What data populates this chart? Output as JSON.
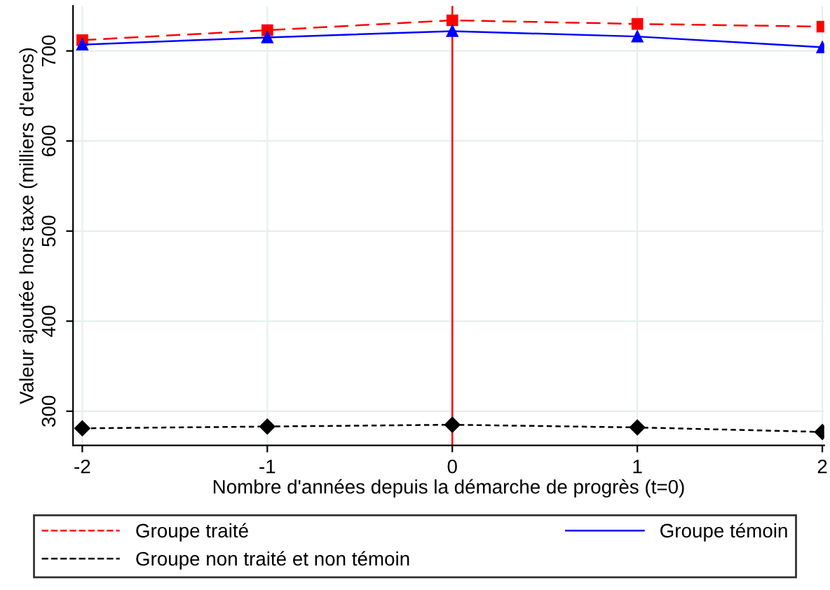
{
  "chart_data": {
    "type": "line",
    "xlabel": "Nombre d'années depuis la démarche de progrès (t=0)",
    "ylabel": "Valeur ajoutée hors taxe (milliers d'euros)",
    "x": [
      -2,
      -1,
      0,
      1,
      2
    ],
    "series": [
      {
        "name": "Groupe traité",
        "color": "#ff0000",
        "values": [
          712,
          723,
          734,
          730,
          727
        ],
        "marker": "square",
        "line_style": "dashed"
      },
      {
        "name": "Groupe témoin",
        "color": "#0000ff",
        "values": [
          707,
          715,
          722,
          716,
          704
        ],
        "marker": "triangle",
        "line_style": "solid"
      },
      {
        "name": "Groupe non traité et non témoin",
        "color": "#000000",
        "values": [
          281,
          283,
          285,
          282,
          277
        ],
        "marker": "diamond",
        "line_style": "dotted"
      }
    ],
    "xlim": [
      -2.05,
      2.01
    ],
    "ylim": [
      262,
      750
    ],
    "xticks": [
      -2,
      -1,
      0,
      1,
      2
    ],
    "yticks": [
      300,
      400,
      500,
      600,
      700
    ],
    "ref_lines": [
      {
        "axis": "x",
        "value": 0,
        "color": "#ff0000",
        "line_style": "solid"
      }
    ],
    "grid": true,
    "legend": "bottom"
  }
}
